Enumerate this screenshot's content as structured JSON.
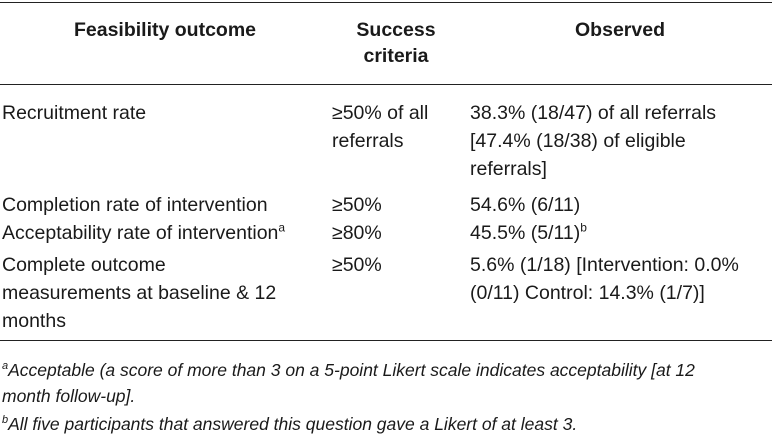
{
  "table": {
    "headers": {
      "outcome": "Feasibility outcome",
      "criteria_line1": "Success",
      "criteria_line2": "criteria",
      "observed": "Observed"
    },
    "rows": [
      {
        "outcome": [
          "Recruitment rate"
        ],
        "criteria": [
          "≥50% of all",
          "referrals"
        ],
        "observed": [
          "38.3% (18/47) of all referrals",
          "[47.4% (18/38) of eligible",
          "referrals]"
        ]
      },
      {
        "outcome": [
          "Completion rate of intervention"
        ],
        "criteria": [
          "≥50%"
        ],
        "observed": [
          "54.6% (6/11)"
        ]
      },
      {
        "outcome": [
          "Acceptability rate of intervention"
        ],
        "outcome_sup": "a",
        "criteria": [
          "≥80%"
        ],
        "observed": [
          "45.5% (5/11)"
        ],
        "observed_sup": "b"
      },
      {
        "outcome": [
          "Complete outcome",
          "measurements at baseline & 12",
          "months"
        ],
        "criteria": [
          "≥50%"
        ],
        "observed": [
          "5.6% (1/18) [Intervention: 0.0%",
          "(0/11) Control: 14.3% (1/7)]"
        ]
      }
    ]
  },
  "footnotes": {
    "a_marker": "a",
    "a_line1": "Acceptable (a score of more than 3 on a 5-point Likert scale indicates acceptability [at 12",
    "a_line2": "month follow-up].",
    "b_marker": "b",
    "b_text": "All five participants that answered this question gave a Likert of at least 3."
  }
}
